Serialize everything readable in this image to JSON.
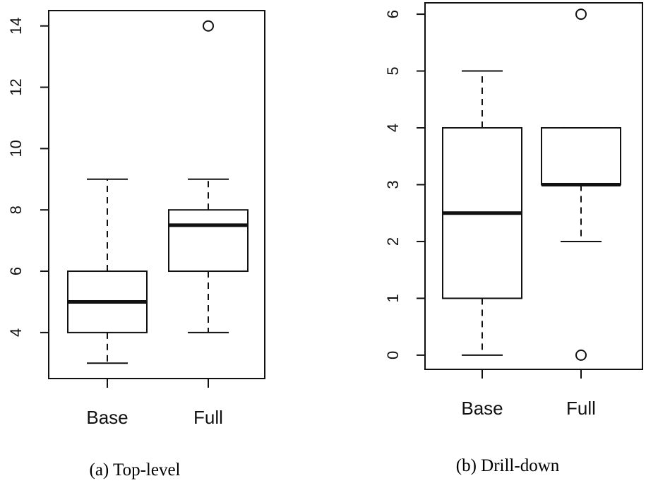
{
  "chart_data": [
    {
      "type": "box",
      "caption": "(a) Top-level",
      "categories": [
        "Base",
        "Full"
      ],
      "ylim": [
        2.5,
        14.5
      ],
      "yticks": [
        4,
        6,
        8,
        10,
        12,
        14
      ],
      "grid": false,
      "boxes": [
        {
          "category": "Base",
          "whisker_low": 3,
          "q1": 4,
          "median": 5,
          "q3": 6,
          "whisker_high": 9,
          "outliers": []
        },
        {
          "category": "Full",
          "whisker_low": 4,
          "q1": 6,
          "median": 7.5,
          "q3": 8,
          "whisker_high": 9,
          "outliers": [
            14
          ]
        }
      ]
    },
    {
      "type": "box",
      "caption": "(b) Drill-down",
      "categories": [
        "Base",
        "Full"
      ],
      "ylim": [
        -0.25,
        6.2
      ],
      "yticks": [
        0,
        1,
        2,
        3,
        4,
        5,
        6
      ],
      "grid": false,
      "boxes": [
        {
          "category": "Base",
          "whisker_low": 0,
          "q1": 1,
          "median": 2.5,
          "q3": 4,
          "whisker_high": 5,
          "outliers": []
        },
        {
          "category": "Full",
          "whisker_low": 2,
          "q1": 3,
          "median": 3,
          "q3": 4,
          "whisker_high": 4,
          "outliers": [
            0,
            6
          ]
        }
      ]
    }
  ]
}
